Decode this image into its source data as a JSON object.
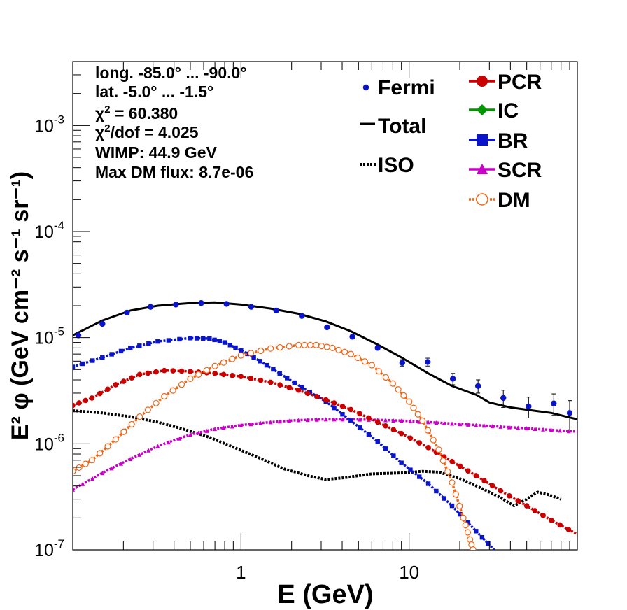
{
  "chart_data": {
    "type": "scatter",
    "xlabel": "E (GeV)",
    "ylabel": "E² φ (GeV cm⁻² s⁻¹ sr⁻¹)",
    "xscale": "log",
    "yscale": "log",
    "xlim": [
      0.1,
      100
    ],
    "ylim": [
      1e-07,
      0.004
    ],
    "xticks": [
      {
        "value": 1,
        "label": "1"
      },
      {
        "value": 10,
        "label": "10"
      }
    ],
    "yticks": [
      {
        "value": 1e-07,
        "base": "10",
        "exp": "-7"
      },
      {
        "value": 1e-06,
        "base": "10",
        "exp": "-6"
      },
      {
        "value": 1e-05,
        "base": "10",
        "exp": "-5"
      },
      {
        "value": 0.0001,
        "base": "10",
        "exp": "-4"
      },
      {
        "value": 0.001,
        "base": "10",
        "exp": "-3"
      }
    ],
    "annotations": [
      "long. -85.0° ... -90.0°",
      "lat. -5.0° ... -1.5°",
      "χ² = 60.380",
      "χ²/dof = 4.025",
      "WIMP: 44.9 GeV",
      "Max DM flux: 8.7e-06"
    ],
    "legend_left": [
      {
        "name": "Fermi",
        "color": "#0a14c8",
        "style": "point"
      },
      {
        "name": "Total",
        "color": "#000000",
        "style": "line"
      },
      {
        "name": "ISO",
        "color": "#000000",
        "style": "dotted"
      }
    ],
    "legend_right": [
      {
        "name": "PCR",
        "color": "#c80000",
        "style": "circle-line"
      },
      {
        "name": "IC",
        "color": "#009600",
        "style": "diamond-line"
      },
      {
        "name": "BR",
        "color": "#0a14c8",
        "style": "square-line"
      },
      {
        "name": "SCR",
        "color": "#c800c8",
        "style": "triangle-line"
      },
      {
        "name": "DM",
        "color": "#f06414",
        "style": "open-circle-dotted"
      }
    ],
    "legend_placement": "top-right",
    "grid": false,
    "series": [
      {
        "name": "Fermi",
        "color": "#0a14c8",
        "points": [
          [
            0.108,
            1.05e-05,
            0.0
          ],
          [
            0.15,
            1.35e-05,
            0.0
          ],
          [
            0.21,
            1.72e-05,
            0.0
          ],
          [
            0.29,
            1.95e-05,
            0.0
          ],
          [
            0.41,
            2.05e-05,
            0.0
          ],
          [
            0.58,
            2.12e-05,
            0.0
          ],
          [
            0.82,
            2.08e-05,
            0.0
          ],
          [
            1.15,
            1.95e-05,
            0.0
          ],
          [
            1.62,
            1.8e-05,
            0.0
          ],
          [
            2.3,
            1.6e-05,
            0.0
          ],
          [
            3.25,
            1.25e-05,
            0.0
          ],
          [
            4.6,
            1.02e-05,
            0.0
          ],
          [
            6.5,
            8e-06,
            0.0
          ],
          [
            9.1,
            5.8e-06,
            4e-07
          ],
          [
            12.9,
            5.9e-06,
            5e-07
          ],
          [
            18.2,
            4.1e-06,
            5e-07
          ],
          [
            25.7,
            3.5e-06,
            5e-07
          ],
          [
            36.3,
            2.7e-06,
            5e-07
          ],
          [
            51.3,
            2.25e-06,
            5e-07
          ],
          [
            72.4,
            2.4e-06,
            5.5e-07
          ],
          [
            90,
            1.95e-06,
            6e-07
          ]
        ]
      },
      {
        "name": "Total",
        "color": "#000000",
        "points": [
          [
            0.1,
            1.05e-05
          ],
          [
            0.15,
            1.45e-05
          ],
          [
            0.22,
            1.8e-05
          ],
          [
            0.32,
            2e-05
          ],
          [
            0.5,
            2.12e-05
          ],
          [
            0.7,
            2.15e-05
          ],
          [
            1.0,
            2.05e-05
          ],
          [
            1.5,
            1.88e-05
          ],
          [
            2.2,
            1.68e-05
          ],
          [
            3.2,
            1.42e-05
          ],
          [
            4.5,
            1.15e-05
          ],
          [
            6.5,
            8.6e-06
          ],
          [
            9.0,
            6.5e-06
          ],
          [
            13,
            4.6e-06
          ],
          [
            18,
            3.5e-06
          ],
          [
            25,
            2.9e-06
          ],
          [
            30,
            2.45e-06
          ],
          [
            40,
            2.2e-06
          ],
          [
            55,
            2.05e-06
          ],
          [
            70,
            1.95e-06
          ],
          [
            100,
            1.7e-06
          ]
        ]
      },
      {
        "name": "PCR",
        "color": "#c80000",
        "points": [
          [
            0.1,
            2.3e-06
          ],
          [
            0.13,
            2.7e-06
          ],
          [
            0.18,
            3.6e-06
          ],
          [
            0.25,
            4.5e-06
          ],
          [
            0.35,
            4.9e-06
          ],
          [
            0.5,
            4.8e-06
          ],
          [
            0.7,
            4.6e-06
          ],
          [
            1.0,
            4.3e-06
          ],
          [
            1.5,
            3.8e-06
          ],
          [
            2.2,
            3.2e-06
          ],
          [
            3.2,
            2.6e-06
          ],
          [
            4.5,
            2.1e-06
          ],
          [
            6.5,
            1.6e-06
          ],
          [
            9.0,
            1.25e-06
          ],
          [
            13,
            9.2e-07
          ],
          [
            18,
            6.8e-07
          ],
          [
            25,
            5e-07
          ],
          [
            35,
            3.6e-07
          ],
          [
            50,
            2.6e-07
          ],
          [
            70,
            1.9e-07
          ],
          [
            100,
            1.4e-07
          ]
        ]
      },
      {
        "name": "BR",
        "color": "#0a14c8",
        "points": [
          [
            0.1,
            5.3e-06
          ],
          [
            0.15,
            6.5e-06
          ],
          [
            0.22,
            8e-06
          ],
          [
            0.32,
            9.2e-06
          ],
          [
            0.5,
            9.9e-06
          ],
          [
            0.65,
            9.8e-06
          ],
          [
            0.8,
            9e-06
          ],
          [
            1.0,
            7.6e-06
          ],
          [
            1.3,
            6e-06
          ],
          [
            1.7,
            4.6e-06
          ],
          [
            2.3,
            3.4e-06
          ],
          [
            3.2,
            2.5e-06
          ],
          [
            4.5,
            1.65e-06
          ],
          [
            6.5,
            1.05e-06
          ],
          [
            9.0,
            6.6e-07
          ],
          [
            13,
            4.2e-07
          ],
          [
            18,
            2.6e-07
          ],
          [
            25,
            1.5e-07
          ],
          [
            32,
            1e-07
          ]
        ]
      },
      {
        "name": "SCR",
        "color": "#c800c8",
        "points": [
          [
            0.1,
            3.7e-07
          ],
          [
            0.15,
            5.3e-07
          ],
          [
            0.22,
            7.2e-07
          ],
          [
            0.32,
            9.5e-07
          ],
          [
            0.5,
            1.22e-06
          ],
          [
            0.7,
            1.38e-06
          ],
          [
            1.0,
            1.5e-06
          ],
          [
            1.5,
            1.6e-06
          ],
          [
            2.2,
            1.67e-06
          ],
          [
            3.2,
            1.7e-06
          ],
          [
            4.5,
            1.7e-06
          ],
          [
            6.5,
            1.68e-06
          ],
          [
            9.0,
            1.65e-06
          ],
          [
            13,
            1.6e-06
          ],
          [
            18,
            1.55e-06
          ],
          [
            25,
            1.5e-06
          ],
          [
            35,
            1.45e-06
          ],
          [
            50,
            1.4e-06
          ],
          [
            70,
            1.35e-06
          ],
          [
            100,
            1.3e-06
          ]
        ]
      },
      {
        "name": "DM",
        "color": "#f06414",
        "points": [
          [
            0.1,
            5.5e-07
          ],
          [
            0.13,
            7e-07
          ],
          [
            0.18,
            1.1e-06
          ],
          [
            0.25,
            1.8e-06
          ],
          [
            0.35,
            2.8e-06
          ],
          [
            0.5,
            4.1e-06
          ],
          [
            0.7,
            5.4e-06
          ],
          [
            1.0,
            6.8e-06
          ],
          [
            1.5,
            7.9e-06
          ],
          [
            2.2,
            8.5e-06
          ],
          [
            2.8,
            8.5e-06
          ],
          [
            3.5,
            8e-06
          ],
          [
            4.5,
            7e-06
          ],
          [
            6.0,
            5.5e-06
          ],
          [
            8.0,
            3.7e-06
          ],
          [
            10,
            2.5e-06
          ],
          [
            12,
            1.65e-06
          ],
          [
            15,
            8.8e-07
          ],
          [
            18,
            4.3e-07
          ],
          [
            21,
            2e-07
          ],
          [
            23,
            1.25e-07
          ],
          [
            24.5,
            9e-08
          ]
        ]
      },
      {
        "name": "ISO",
        "color": "#000000",
        "points": [
          [
            0.1,
            2.05e-06
          ],
          [
            0.15,
            1.95e-06
          ],
          [
            0.22,
            1.8e-06
          ],
          [
            0.32,
            1.6e-06
          ],
          [
            0.45,
            1.38e-06
          ],
          [
            0.65,
            1.15e-06
          ],
          [
            0.9,
            9.3e-07
          ],
          [
            1.3,
            7.3e-07
          ],
          [
            1.8,
            5.8e-07
          ],
          [
            2.5,
            5e-07
          ],
          [
            3.2,
            4.6e-07
          ],
          [
            4.2,
            4.8e-07
          ],
          [
            6.0,
            5.2e-07
          ],
          [
            9.0,
            5.3e-07
          ],
          [
            12,
            5.5e-07
          ],
          [
            15,
            5.4e-07
          ],
          [
            20,
            4.7e-07
          ],
          [
            27,
            3.8e-07
          ],
          [
            35,
            3.1e-07
          ],
          [
            42,
            2.6e-07
          ],
          [
            50,
            3e-07
          ],
          [
            58,
            3.5e-07
          ],
          [
            68,
            3.3e-07
          ],
          [
            80,
            3e-07
          ]
        ]
      },
      {
        "name": "IC",
        "color": "#009600",
        "points": []
      }
    ]
  }
}
